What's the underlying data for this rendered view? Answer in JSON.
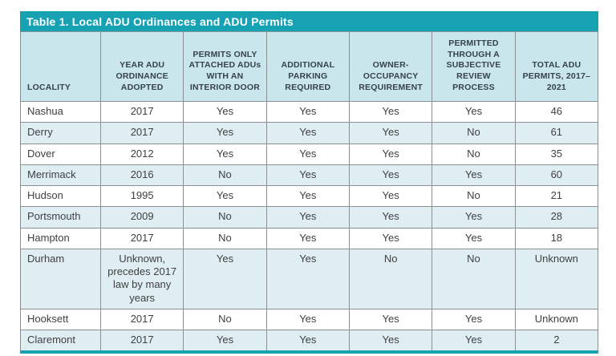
{
  "table": {
    "title": "Table 1. Local ADU Ordinances and ADU Permits",
    "columns": [
      "LOCALITY",
      "YEAR ADU ORDINANCE ADOPTED",
      "PERMITS ONLY ATTACHED ADUs WITH AN INTERIOR DOOR",
      "ADDITIONAL PARKING REQUIRED",
      "OWNER-OCCUPANCY REQUIREMENT",
      "PERMITTED THROUGH A SUBJECTIVE REVIEW PROCESS",
      "TOTAL ADU PERMITS, 2017–2021"
    ],
    "rows": [
      [
        "Nashua",
        "2017",
        "Yes",
        "Yes",
        "Yes",
        "Yes",
        "46"
      ],
      [
        "Derry",
        "2017",
        "Yes",
        "Yes",
        "Yes",
        "No",
        "61"
      ],
      [
        "Dover",
        "2012",
        "Yes",
        "Yes",
        "Yes",
        "No",
        "35"
      ],
      [
        "Merrimack",
        "2016",
        "No",
        "Yes",
        "Yes",
        "Yes",
        "60"
      ],
      [
        "Hudson",
        "1995",
        "Yes",
        "Yes",
        "Yes",
        "No",
        "21"
      ],
      [
        "Portsmouth",
        "2009",
        "No",
        "Yes",
        "Yes",
        "Yes",
        "28"
      ],
      [
        "Hampton",
        "2017",
        "No",
        "Yes",
        "Yes",
        "Yes",
        "18"
      ],
      [
        "Durham",
        "Unknown, precedes 2017 law by many years",
        "Yes",
        "Yes",
        "No",
        "No",
        "Unknown"
      ],
      [
        "Hooksett",
        "2017",
        "No",
        "Yes",
        "Yes",
        "Yes",
        "Unknown"
      ],
      [
        "Claremont",
        "2017",
        "Yes",
        "Yes",
        "Yes",
        "Yes",
        "2"
      ]
    ],
    "colors": {
      "teal": "#16A2B3",
      "header_bg": "#C9E6EC",
      "row_alt_bg": "#DEEEF2",
      "row_bg": "#FFFFFF",
      "border": "#8D9091",
      "text": "#414042",
      "header_text": "#37424A",
      "title_text": "#FFFFFF"
    }
  }
}
